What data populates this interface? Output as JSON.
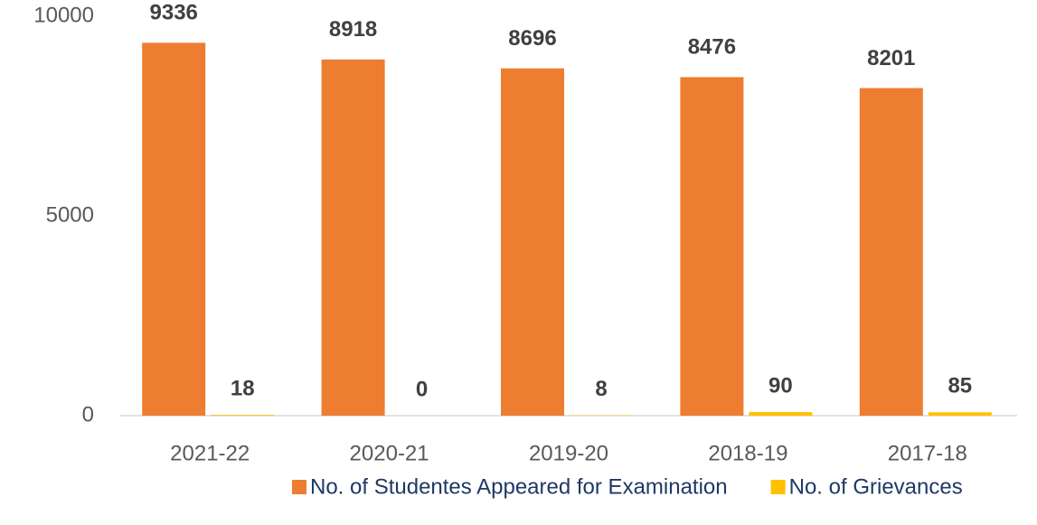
{
  "chart_data": {
    "type": "bar",
    "categories": [
      "2021-22",
      "2020-21",
      "2019-20",
      "2018-19",
      "2017-18"
    ],
    "series": [
      {
        "name": "No. of Studentes Appeared for Examination",
        "color": "#ed7d31",
        "values": [
          9336,
          8918,
          8696,
          8476,
          8201
        ]
      },
      {
        "name": "No. of Grievances",
        "color": "#ffc000",
        "values": [
          18,
          0,
          8,
          90,
          85
        ]
      }
    ],
    "ylim": [
      0,
      10000
    ],
    "yticks": [
      0,
      5000,
      10000
    ],
    "grid": false,
    "legend": "bottom"
  }
}
